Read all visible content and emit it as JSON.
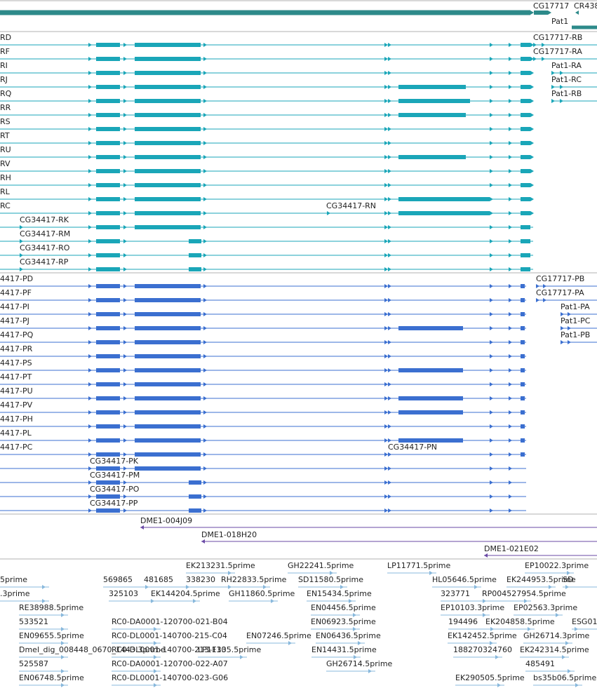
{
  "colors": {
    "gene": "#2d8a8a",
    "transcript": "#1aa6b8",
    "protein": "#3b6fd0",
    "clone": "#6a4aa6",
    "est": "#88b8dc",
    "divider": "#b0b0b0"
  },
  "gene_track": {
    "labels": [
      {
        "key": "g1",
        "text": "CG17717"
      },
      {
        "key": "g2",
        "text": "CR438"
      },
      {
        "key": "g3",
        "text": "Pat1"
      }
    ]
  },
  "transcripts": {
    "rows": [
      {
        "label": "RD"
      },
      {
        "label": "RF"
      },
      {
        "label": "RI"
      },
      {
        "label": "RJ"
      },
      {
        "label": "RQ"
      },
      {
        "label": "RR"
      },
      {
        "label": "RS"
      },
      {
        "label": "RT"
      },
      {
        "label": "RU"
      },
      {
        "label": "RV"
      },
      {
        "label": "RH"
      },
      {
        "label": "RL"
      },
      {
        "label": "RC"
      }
    ],
    "short_labels": [
      "CG34417-RK",
      "CG34417-RM",
      "CG34417-RO",
      "CG34417-RP"
    ],
    "rn_label": "CG34417-RN",
    "right_labels": [
      "CG17717-RB",
      "CG17717-RA",
      "Pat1-RA",
      "Pat1-RC",
      "Pat1-RB"
    ]
  },
  "proteins": {
    "rows": [
      {
        "label": "4417-PD"
      },
      {
        "label": "4417-PF"
      },
      {
        "label": "4417-PI"
      },
      {
        "label": "4417-PJ"
      },
      {
        "label": "4417-PQ"
      },
      {
        "label": "4417-PR"
      },
      {
        "label": "4417-PS"
      },
      {
        "label": "4417-PT"
      },
      {
        "label": "4417-PU"
      },
      {
        "label": "4417-PV"
      },
      {
        "label": "4417-PH"
      },
      {
        "label": "4417-PL"
      },
      {
        "label": "4417-PC"
      }
    ],
    "short_labels": [
      "CG34417-PK",
      "CG34417-PM",
      "CG34417-PO",
      "CG34417-PP"
    ],
    "pn_label": "CG34417-PN",
    "right_labels": [
      "CG17717-PB",
      "CG17717-PA",
      "Pat1-PA",
      "Pat1-PC",
      "Pat1-PB"
    ]
  },
  "clones": [
    "DME1-004J09",
    "DME1-018H20",
    "DME1-021E02"
  ],
  "ests": [
    "5prime",
    "569865",
    "481685",
    "EK213231.5prime",
    "338230",
    "RH22833.5prime",
    "GH22241.5prime",
    "SD11580.5prime",
    "LP11771.5prime",
    "HL05646.5prime",
    "EK244953.5prime",
    "EP10022.3prime",
    "SD",
    ".3prime",
    "325103",
    "EK144204.5prime",
    "GH11860.5prime",
    "EN15434.5prime",
    "323771",
    "RP004527954.5prime",
    "RE38988.5prime",
    "EN04456.5prime",
    "EP10103.3prime",
    "EP02563.3prime",
    "533521",
    "RC0-DA0001-120700-021-B04",
    "EN06923.5prime",
    "194496",
    "EK204858.5prime",
    "ESG01",
    "RC0-DL0001-140700-215-C04",
    "EN09655.5prime",
    "RC0-DL0001-140700-213-F10",
    "EN07246.5prime",
    "EN06436.5prime",
    "EK142452.5prime",
    "GH26714.3prime",
    "Dmel_dig_008448_0670_1443.3prime",
    "LP11335.5prime",
    "EN14431.5prime",
    "188270324760",
    "EK242314.5prime",
    "525587",
    "RC0-DA0001-120700-022-A07",
    "GH26714.5prime",
    "485491",
    "EN06748.5prime",
    "RC0-DL0001-140700-023-G06",
    "EK290505.5prime",
    "bs35b06.5prime"
  ]
}
